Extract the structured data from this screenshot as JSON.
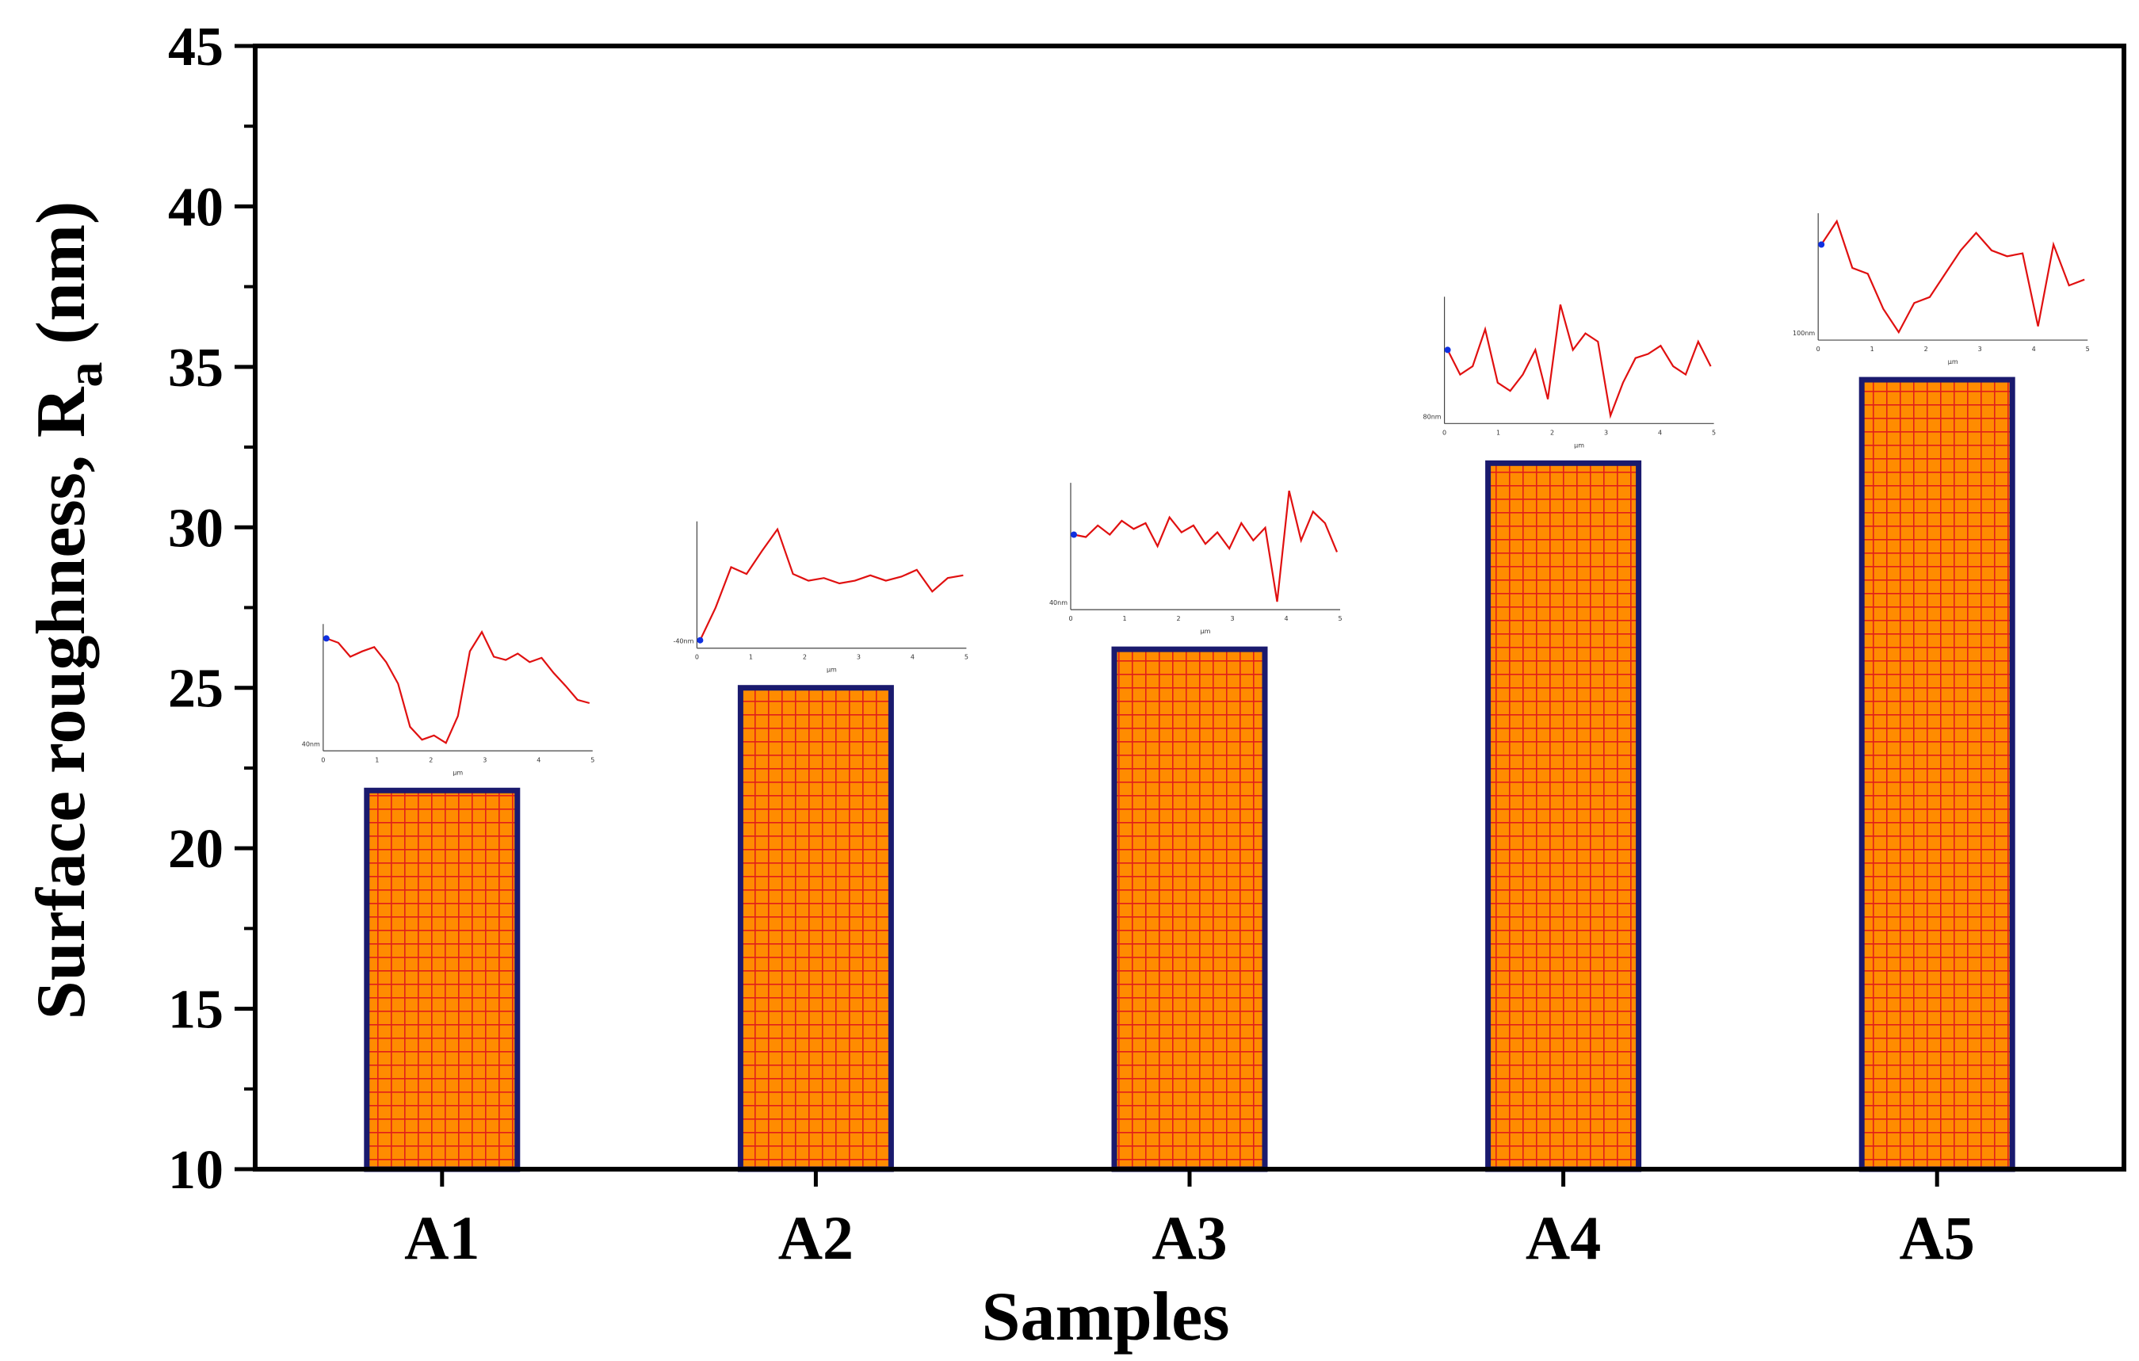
{
  "chart_data": {
    "type": "bar",
    "title": "",
    "categories": [
      "A1",
      "A2",
      "A3",
      "A4",
      "A5"
    ],
    "values": [
      21.8,
      25.0,
      26.2,
      32.0,
      34.6
    ],
    "xlabel": "Samples",
    "ylabel": "Surface roughness, R",
    "ylabel_subscript": "a",
    "ylabel_unit": "(nm)",
    "ylim": [
      10,
      45
    ],
    "yticks": [
      "10",
      "15",
      "20",
      "25",
      "30",
      "35",
      "40",
      "45"
    ],
    "grid": false,
    "bar_fill": "#ff8c00",
    "bar_hatch": "#e0201a",
    "bar_edge": "#1a1a6e",
    "inset_line_color": "#e01010",
    "inset_axis_label": "µm",
    "inset_xticks": [
      "0",
      "1",
      "2",
      "3",
      "4",
      "5"
    ],
    "inset_ylabels": [
      "40nm",
      "-40nm",
      "40nm",
      "80nm",
      "100nm"
    ],
    "inset_profiles": [
      [
        52,
        48,
        35,
        40,
        44,
        30,
        10,
        -30,
        -42,
        -38,
        -45,
        -20,
        40,
        58,
        35,
        32,
        38,
        30,
        34,
        20,
        8,
        -5,
        -8
      ],
      [
        -44,
        -20,
        10,
        5,
        22,
        38,
        5,
        0,
        2,
        -2,
        0,
        4,
        0,
        3,
        8,
        -8,
        2,
        4
      ],
      [
        20,
        18,
        28,
        20,
        32,
        25,
        30,
        10,
        35,
        22,
        28,
        12,
        22,
        8,
        30,
        15,
        26,
        -38,
        58,
        15,
        40,
        30,
        5
      ],
      [
        20,
        -10,
        0,
        45,
        -20,
        -30,
        -10,
        20,
        -40,
        75,
        20,
        40,
        30,
        -60,
        -20,
        10,
        15,
        25,
        0,
        -10,
        30,
        0
      ],
      [
        60,
        100,
        20,
        10,
        -50,
        -90,
        -40,
        -30,
        10,
        50,
        80,
        50,
        40,
        45,
        -80,
        60,
        -10,
        0
      ]
    ]
  }
}
